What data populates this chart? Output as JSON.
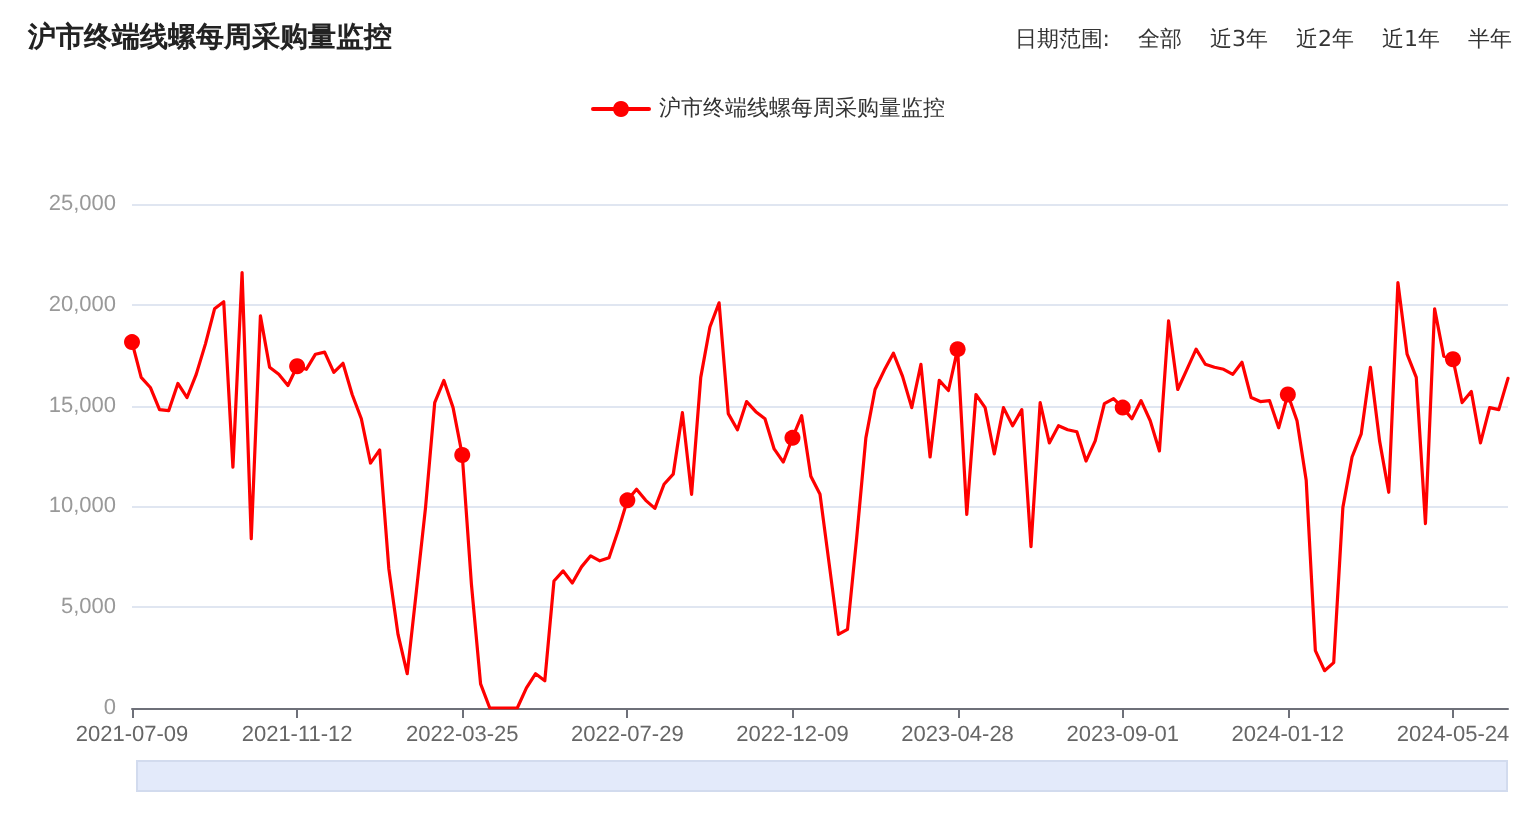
{
  "chart_data": {
    "type": "line",
    "title": "沪市终端线螺每周采购量监控",
    "annotations": [
      "日期范围:",
      "全部",
      "近3年",
      "近2年",
      "近1年",
      "半年"
    ],
    "categories": [
      "2021-07-09",
      null,
      null,
      null,
      null,
      null,
      null,
      null,
      null,
      null,
      null,
      null,
      null,
      null,
      null,
      null,
      null,
      null,
      "2021-11-12",
      null,
      null,
      null,
      null,
      null,
      null,
      null,
      null,
      null,
      null,
      null,
      null,
      null,
      null,
      null,
      null,
      null,
      "2022-03-25",
      null,
      null,
      null,
      null,
      null,
      null,
      null,
      null,
      null,
      null,
      null,
      null,
      null,
      null,
      null,
      null,
      null,
      "2022-07-29",
      null,
      null,
      null,
      null,
      null,
      null,
      null,
      null,
      null,
      null,
      null,
      null,
      null,
      null,
      null,
      null,
      null,
      "2022-12-09",
      null,
      null,
      null,
      null,
      null,
      null,
      null,
      null,
      null,
      null,
      null,
      null,
      null,
      null,
      null,
      null,
      null,
      "2023-04-28",
      null,
      null,
      null,
      null,
      null,
      null,
      null,
      null,
      null,
      null,
      null,
      null,
      null,
      null,
      null,
      null,
      null,
      "2023-09-01",
      null,
      null,
      null,
      null,
      null,
      null,
      null,
      null,
      null,
      null,
      null,
      null,
      null,
      null,
      null,
      null,
      null,
      "2024-01-12",
      null,
      null,
      null,
      null,
      null,
      null,
      null,
      null,
      null,
      null,
      null,
      null,
      null,
      null,
      null,
      null,
      null,
      "2024-05-24",
      null,
      null,
      null,
      null,
      null,
      null
    ],
    "series": [
      {
        "name": "沪市终端线螺每周采购量监控",
        "color": "#ff0000",
        "values": [
          18150,
          16400,
          15900,
          14800,
          14750,
          16100,
          15400,
          16550,
          18050,
          19800,
          20150,
          11950,
          21600,
          8400,
          19450,
          16900,
          16550,
          16000,
          16950,
          16800,
          17550,
          17650,
          16650,
          17100,
          15550,
          14350,
          12150,
          12800,
          6900,
          3650,
          1700,
          5800,
          9950,
          15150,
          16250,
          14900,
          12550,
          6150,
          1200,
          0,
          0,
          0,
          0,
          1000,
          1700,
          1350,
          6300,
          6800,
          6200,
          7000,
          7550,
          7300,
          7450,
          8800,
          10300,
          10850,
          10300,
          9900,
          11100,
          11600,
          14650,
          10600,
          16400,
          18900,
          20100,
          14600,
          13800,
          15200,
          14700,
          14350,
          12850,
          12200,
          13400,
          14500,
          11500,
          10600,
          7150,
          3650,
          3900,
          8450,
          13400,
          15800,
          16750,
          17600,
          16450,
          14900,
          17050,
          12450,
          16250,
          15750,
          17800,
          9600,
          15550,
          14900,
          12600,
          14900,
          14000,
          14800,
          8000,
          15150,
          13150,
          14000,
          13800,
          13700,
          12250,
          13250,
          15100,
          15350,
          14900,
          14350,
          15250,
          14250,
          12750,
          19200,
          15800,
          16800,
          17800,
          17050,
          16900,
          16800,
          16550,
          17150,
          15400,
          15200,
          15250,
          13900,
          15550,
          14250,
          11300,
          2850,
          1850,
          2250,
          9950,
          12450,
          13600,
          16900,
          13250,
          10700,
          21100,
          17550,
          16400,
          9150,
          19800,
          17450,
          17300,
          15150,
          15700,
          13150,
          14900,
          14800,
          16350
        ]
      }
    ],
    "ylim": [
      0,
      25000
    ],
    "yticks": [
      0,
      {
        "value": 5000,
        "label": "5,000"
      },
      {
        "value": 10000,
        "label": "10,000"
      },
      {
        "value": 15000,
        "label": "15,000"
      },
      {
        "value": 20000,
        "label": "20,000"
      },
      {
        "value": 25000,
        "label": "25,000"
      }
    ],
    "grid": "y",
    "legend": "top",
    "line_style": "solid"
  }
}
